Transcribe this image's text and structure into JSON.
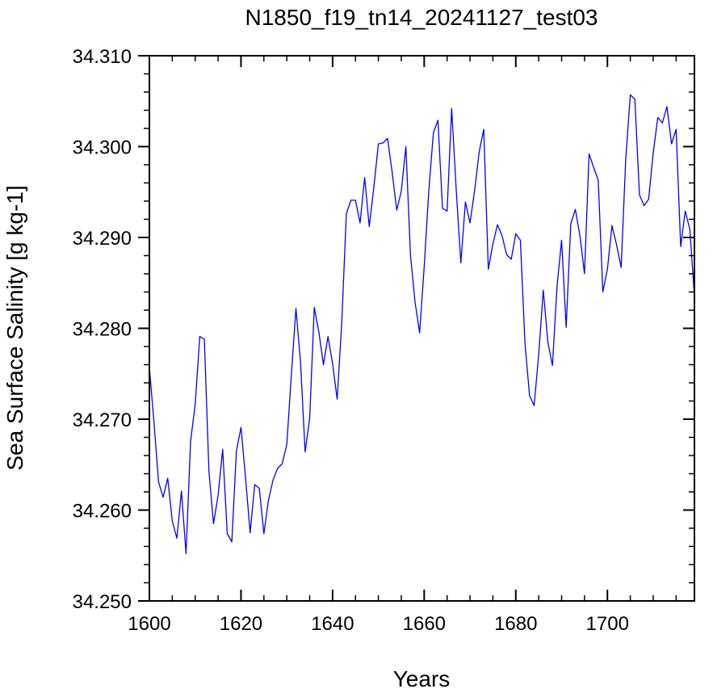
{
  "chart_data": {
    "type": "line",
    "title": "N1850_f19_tn14_20241127_test03",
    "xlabel": "Years",
    "ylabel": "Sea Surface Salinity [g kg-1]",
    "xlim": [
      1600,
      1719
    ],
    "ylim": [
      34.25,
      34.31
    ],
    "x_major_ticks": [
      1600,
      1620,
      1640,
      1660,
      1680,
      1700
    ],
    "x_tick_labels": [
      "1600",
      "1620",
      "1640",
      "1660",
      "1680",
      "1700"
    ],
    "x_minor_step": 5,
    "y_major_ticks": [
      34.25,
      34.26,
      34.27,
      34.28,
      34.29,
      34.3,
      34.31
    ],
    "y_tick_labels": [
      "34.250",
      "34.260",
      "34.270",
      "34.280",
      "34.290",
      "34.300",
      "34.310"
    ],
    "y_minor_step": 0.002,
    "grid": false,
    "line_color": "#0000ff",
    "series": [
      {
        "x": [
          1600,
          1601,
          1602,
          1603,
          1604,
          1605,
          1606,
          1607,
          1608,
          1609,
          1610,
          1611,
          1612,
          1613,
          1614,
          1615,
          1616,
          1617,
          1618,
          1619,
          1620,
          1621,
          1622,
          1623,
          1624,
          1625,
          1626,
          1627,
          1628,
          1629,
          1630,
          1631,
          1632,
          1633,
          1634,
          1635,
          1636,
          1637,
          1638,
          1639,
          1640,
          1641,
          1642,
          1643,
          1644,
          1645,
          1646,
          1647,
          1648,
          1649,
          1650,
          1651,
          1652,
          1653,
          1654,
          1655,
          1656,
          1657,
          1658,
          1659,
          1660,
          1661,
          1662,
          1663,
          1664,
          1665,
          1666,
          1667,
          1668,
          1669,
          1670,
          1671,
          1672,
          1673,
          1674,
          1675,
          1676,
          1677,
          1678,
          1679,
          1680,
          1681,
          1682,
          1683,
          1684,
          1685,
          1686,
          1687,
          1688,
          1689,
          1690,
          1691,
          1692,
          1693,
          1694,
          1695,
          1696,
          1697,
          1698,
          1699,
          1700,
          1701,
          1702,
          1703,
          1704,
          1705,
          1706,
          1707,
          1708,
          1709,
          1710,
          1711,
          1712,
          1713,
          1714,
          1715,
          1716,
          1717,
          1718,
          1719
        ],
        "values": [
          34.2757,
          34.2697,
          34.2631,
          34.2614,
          34.2635,
          34.2588,
          34.2569,
          34.2621,
          34.2552,
          34.2676,
          34.2716,
          34.2791,
          34.2788,
          34.2643,
          34.2585,
          34.2616,
          34.2667,
          34.2574,
          34.2565,
          34.2665,
          34.2691,
          34.2635,
          34.2575,
          34.2628,
          34.2624,
          34.2574,
          34.2611,
          34.2633,
          34.2646,
          34.2651,
          34.2672,
          34.2749,
          34.2822,
          34.2763,
          34.2664,
          34.2701,
          34.2823,
          34.2796,
          34.276,
          34.2791,
          34.2761,
          34.2722,
          34.2806,
          34.2926,
          34.2941,
          34.2941,
          34.2916,
          34.2966,
          34.2912,
          34.2955,
          34.3003,
          34.3004,
          34.3009,
          34.2972,
          34.293,
          34.2951,
          34.3,
          34.2881,
          34.2829,
          34.2795,
          34.2868,
          34.2951,
          34.3015,
          34.3029,
          34.2932,
          34.2929,
          34.3042,
          34.2952,
          34.2872,
          34.2939,
          34.2916,
          34.2951,
          34.2994,
          34.3019,
          34.2865,
          34.2893,
          34.2914,
          34.2902,
          34.2881,
          34.2876,
          34.2904,
          34.2897,
          34.2784,
          34.2726,
          34.2715,
          34.2771,
          34.2842,
          34.2785,
          34.2759,
          34.2846,
          34.2897,
          34.2801,
          34.2915,
          34.2931,
          34.2902,
          34.286,
          34.2992,
          34.2977,
          34.2963,
          34.284,
          34.2865,
          34.2913,
          34.2892,
          34.2867,
          34.2986,
          34.3057,
          34.3052,
          34.2947,
          34.2935,
          34.2942,
          34.2993,
          34.3032,
          34.3026,
          34.3044,
          34.3003,
          34.3019,
          34.289,
          34.2929,
          34.2909,
          34.2835
        ]
      }
    ]
  }
}
